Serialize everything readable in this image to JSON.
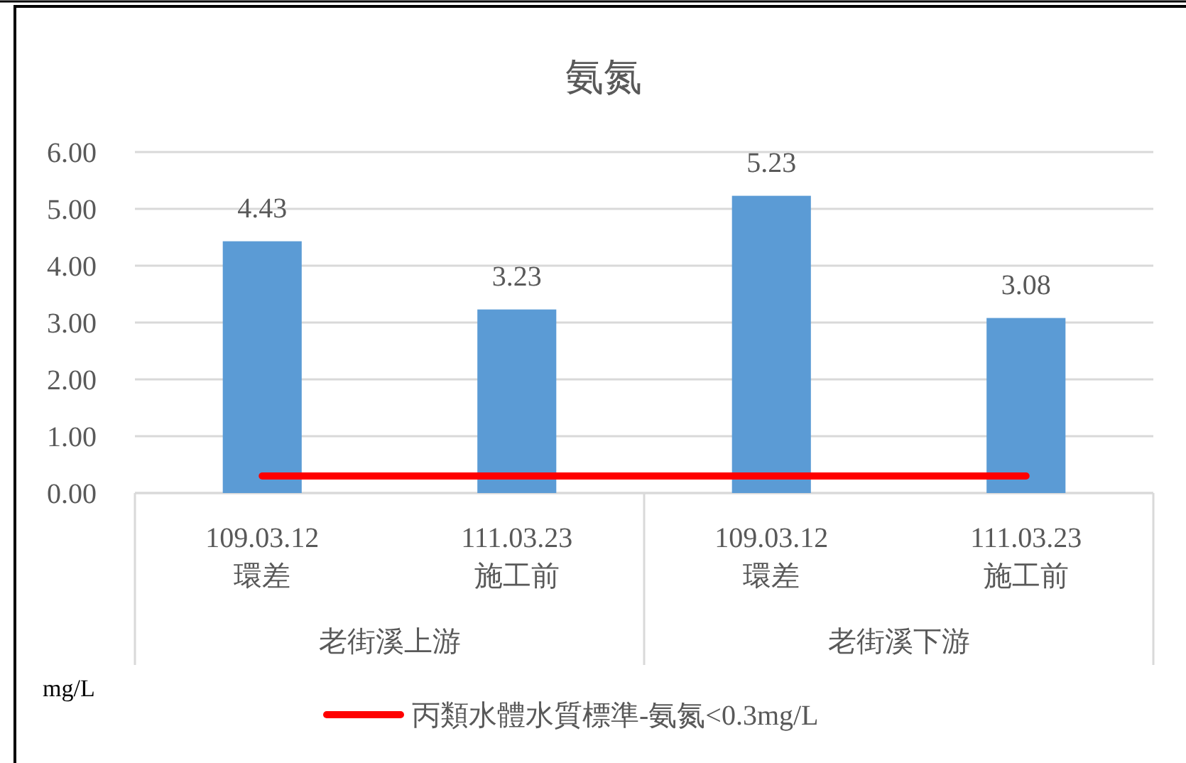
{
  "chart_data": {
    "type": "bar",
    "title": "氨氮",
    "ylabel": "mg/L",
    "categories": [
      "109.03.12\n環差",
      "111.03.23\n施工前",
      "109.03.12\n環差",
      "111.03.23\n施工前"
    ],
    "annotations": [
      "老街溪上游",
      "老街溪下游"
    ],
    "series": [
      {
        "color": "#5b9bd5",
        "values": [
          4.43,
          3.23,
          5.23,
          3.08
        ],
        "value_labels": [
          "4.43",
          "3.23",
          "5.23",
          "3.08"
        ]
      },
      {
        "type": "line",
        "name": "丙類水體水質標準-氨氮<0.3mg/L",
        "color": "#ff0000",
        "values": [
          0.3,
          0.3,
          0.3,
          0.3
        ]
      }
    ],
    "ylim": [
      0,
      6
    ],
    "yticks": [
      {
        "value": 0,
        "label": "0.00"
      },
      {
        "value": 1,
        "label": "1.00"
      },
      {
        "value": 2,
        "label": "2.00"
      },
      {
        "value": 3,
        "label": "3.00"
      },
      {
        "value": 4,
        "label": "4.00"
      },
      {
        "value": 5,
        "label": "5.00"
      },
      {
        "value": 6,
        "label": "6.00"
      }
    ],
    "grid": "y",
    "legend": "bottom"
  }
}
